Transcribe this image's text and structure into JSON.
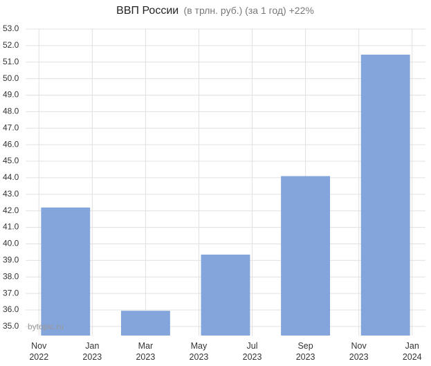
{
  "chart_data": {
    "type": "bar",
    "title": "ВВП России",
    "subtitle": "(в трлн. руб.) (за 1 год) +22%",
    "annotation": "bytopic.ru",
    "x": [
      "2022-12",
      "2023-03",
      "2023-06",
      "2023-09",
      "2023-12"
    ],
    "values": [
      42.2,
      35.95,
      39.35,
      44.1,
      51.45
    ],
    "color": "#84a4dc",
    "xticks": [
      {
        "value": "2022-11",
        "label": "Nov 2022"
      },
      {
        "value": "2023-01",
        "label": "Jan 2023"
      },
      {
        "value": "2023-03",
        "label": "Mar 2023"
      },
      {
        "value": "2023-05",
        "label": "May 2023"
      },
      {
        "value": "2023-07",
        "label": "Jul 2023"
      },
      {
        "value": "2023-09",
        "label": "Sep 2023"
      },
      {
        "value": "2023-11",
        "label": "Nov 2023"
      },
      {
        "value": "2024-01",
        "label": "Jan 2024"
      }
    ],
    "ylim": [
      34.45,
      53
    ],
    "yticks": [
      {
        "value": 35,
        "label": "35.0"
      },
      {
        "value": 36,
        "label": "36.0"
      },
      {
        "value": 37,
        "label": "37.0"
      },
      {
        "value": 38,
        "label": "38.0"
      },
      {
        "value": 39,
        "label": "39.0"
      },
      {
        "value": 40,
        "label": "40.0"
      },
      {
        "value": 41,
        "label": "41.0"
      },
      {
        "value": 42,
        "label": "42.0"
      },
      {
        "value": 43,
        "label": "43.0"
      },
      {
        "value": 44,
        "label": "44.0"
      },
      {
        "value": 45,
        "label": "45.0"
      },
      {
        "value": 46,
        "label": "46.0"
      },
      {
        "value": 47,
        "label": "47.0"
      },
      {
        "value": 48,
        "label": "48.0"
      },
      {
        "value": 49,
        "label": "49.0"
      },
      {
        "value": 50,
        "label": "50.0"
      },
      {
        "value": 51,
        "label": "51.0"
      },
      {
        "value": 52,
        "label": "52.0"
      },
      {
        "value": 53,
        "label": "53.0"
      }
    ],
    "grid": true
  }
}
